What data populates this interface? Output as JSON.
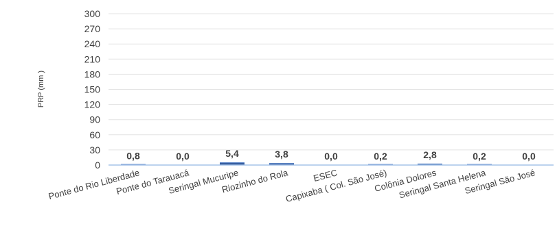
{
  "chart_data": {
    "type": "bar",
    "title": "",
    "ylabel": "PRP (mm )",
    "xlabel": "",
    "ylim": [
      0,
      300
    ],
    "yticks": [
      "0",
      "30",
      "60",
      "90",
      "120",
      "150",
      "180",
      "210",
      "240",
      "270",
      "300"
    ],
    "grid": true,
    "categories": [
      "Ponte do Rio Liberdade",
      "Ponte do Tarauacá",
      "Seringal Mucuripe",
      "Riozinho do Rola",
      "ESEC",
      "Capixaba ( Col. São José)",
      "Colônia Dolores",
      "Seringal Santa Helena",
      "Seringal São José"
    ],
    "values": [
      0.8,
      0.0,
      5.4,
      3.8,
      0.0,
      0.2,
      2.8,
      0.2,
      0.0
    ],
    "value_labels": [
      "0,8",
      "0,0",
      "5,4",
      "3,8",
      "0,0",
      "0,2",
      "2,8",
      "0,2",
      "0,0"
    ],
    "bar_color": "#2e5597",
    "bar_highlight": "#5b85c8",
    "axis_color": "#a6c4e8",
    "grid_color": "#e3e3e3"
  }
}
